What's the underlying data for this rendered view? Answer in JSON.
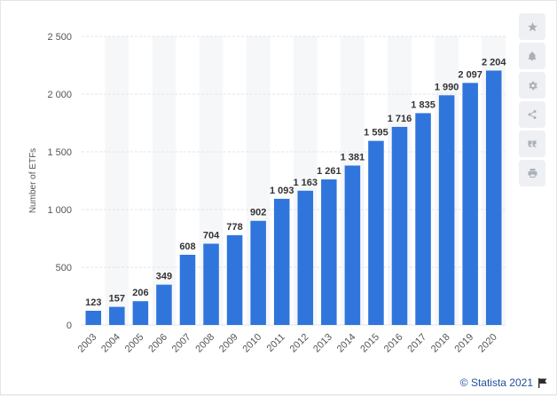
{
  "chart_data": {
    "type": "bar",
    "categories": [
      "2003",
      "2004",
      "2005",
      "2006",
      "2007",
      "2008",
      "2009",
      "2010",
      "2011",
      "2012",
      "2013",
      "2014",
      "2015",
      "2016",
      "2017",
      "2018",
      "2019",
      "2020"
    ],
    "values": [
      123,
      157,
      206,
      349,
      608,
      704,
      778,
      902,
      1093,
      1163,
      1261,
      1381,
      1595,
      1716,
      1835,
      1990,
      2097,
      2204
    ],
    "value_labels": [
      "123",
      "157",
      "206",
      "349",
      "608",
      "704",
      "778",
      "902",
      "1 093",
      "1 163",
      "1 261",
      "1 381",
      "1 595",
      "1 716",
      "1 835",
      "1 990",
      "2 097",
      "2 204"
    ],
    "ylabel": "Number of ETFs",
    "xlabel": "",
    "ylim": [
      0,
      2500
    ],
    "yticks": [
      0,
      500,
      1000,
      1500,
      2000,
      2500
    ],
    "ytick_labels": [
      "0",
      "500",
      "1 000",
      "1 500",
      "2 000",
      "2 500"
    ],
    "grid": true,
    "bar_color": "#2f75dc"
  },
  "footer": {
    "credit": "© Statista 2021"
  },
  "toolbar": {
    "icons": [
      "star-icon",
      "bell-icon",
      "gear-icon",
      "share-icon",
      "quote-icon",
      "print-icon"
    ]
  }
}
